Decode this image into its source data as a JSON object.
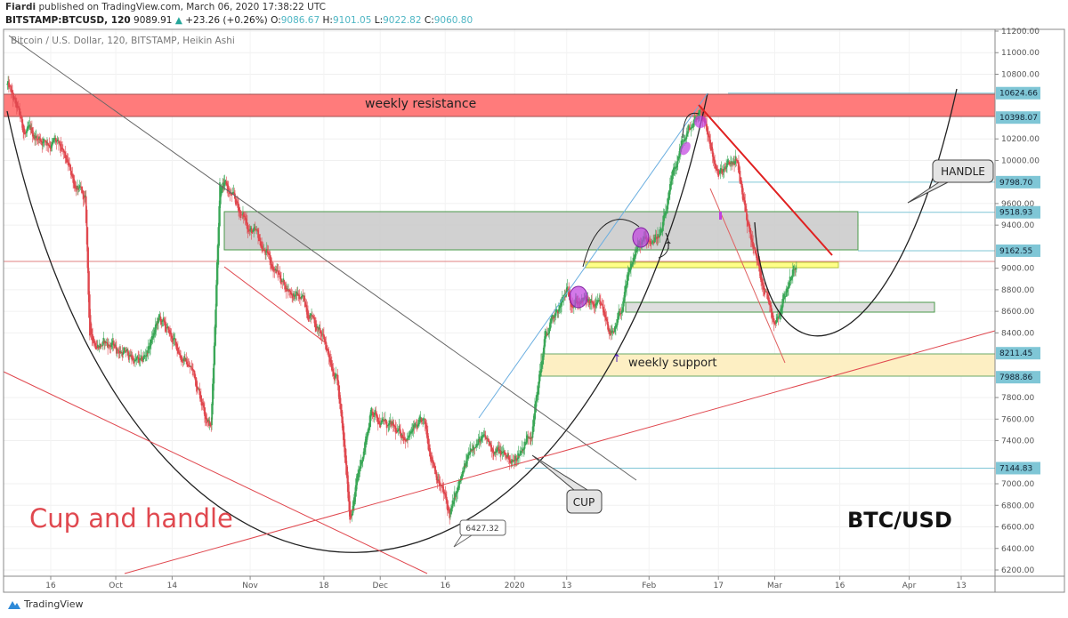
{
  "header": {
    "author": "Fiardi",
    "published": "published on TradingView.com, March 06, 2020 17:38:22 UTC",
    "symbol": "BITSTAMP:BTCUSD, 120",
    "last": "9089.91",
    "change": "+23.26 (+0.26%)",
    "o_label": "O:",
    "o": "9086.67",
    "h_label": "H:",
    "h": "9101.05",
    "l_label": "L:",
    "l": "9022.82",
    "c_label": "C:",
    "c": "9060.80"
  },
  "footer": {
    "brand": "TradingView"
  },
  "colors": {
    "up": "#3aa757",
    "down": "#e0484f",
    "resistance": "#ff7b7b",
    "support": "#fdefc3",
    "level": "#7fc6d6",
    "gray_zone": "#c9c9c9"
  },
  "chart_data": {
    "type": "candlestick",
    "title": "Bitcoin / U.S. Dollar, 120, BITSTAMP, Heikin Ashi",
    "ylim": [
      6200,
      11200
    ],
    "y_ticks": [
      "11200.00",
      "11000.00",
      "10800.00",
      "10200.00",
      "10000.00",
      "9600.00",
      "9400.00",
      "9000.00",
      "8800.00",
      "8600.00",
      "8400.00",
      "7800.00",
      "7600.00",
      "7400.00",
      "7000.00",
      "6800.00",
      "6600.00",
      "6400.00",
      "6200.00"
    ],
    "y_tick_values": [
      11200,
      11000,
      10800,
      10200,
      10000,
      9600,
      9400,
      9000,
      8800,
      8600,
      8400,
      7800,
      7600,
      7400,
      7000,
      6800,
      6600,
      6400,
      6200
    ],
    "x_ticks": [
      {
        "label": "16",
        "date": "2019-09-16"
      },
      {
        "label": "Oct",
        "date": "2019-10-01"
      },
      {
        "label": "14",
        "date": "2019-10-14"
      },
      {
        "label": "Nov",
        "date": "2019-11-01"
      },
      {
        "label": "18",
        "date": "2019-11-18"
      },
      {
        "label": "Dec",
        "date": "2019-12-01"
      },
      {
        "label": "16",
        "date": "2019-12-16"
      },
      {
        "label": "2020",
        "date": "2020-01-01"
      },
      {
        "label": "13",
        "date": "2020-01-13"
      },
      {
        "label": "Feb",
        "date": "2020-02-01"
      },
      {
        "label": "17",
        "date": "2020-02-17"
      },
      {
        "label": "Mar",
        "date": "2020-03-01"
      },
      {
        "label": "16",
        "date": "2020-03-16"
      },
      {
        "label": "Apr",
        "date": "2020-04-01"
      },
      {
        "label": "13",
        "date": "2020-04-13"
      }
    ],
    "price_levels": [
      {
        "label": "10624.66",
        "value": 10624.66
      },
      {
        "label": "10398.07",
        "value": 10398.07
      },
      {
        "label": "9798.70",
        "value": 9798.7
      },
      {
        "label": "9518.93",
        "value": 9518.93
      },
      {
        "label": "9162.55",
        "value": 9162.55
      },
      {
        "label": "8211.45",
        "value": 8211.45
      },
      {
        "label": "7988.86",
        "value": 7988.86
      },
      {
        "label": "7144.83",
        "value": 7144.83
      }
    ],
    "current_price": 9060.8,
    "approx_close_path": [
      [
        "2019-09-06",
        10700
      ],
      [
        "2019-09-10",
        10250
      ],
      [
        "2019-09-17",
        10170
      ],
      [
        "2019-09-24",
        9590
      ],
      [
        "2019-09-25",
        8350
      ],
      [
        "2019-10-01",
        8270
      ],
      [
        "2019-10-07",
        8100
      ],
      [
        "2019-10-11",
        8520
      ],
      [
        "2019-10-19",
        8020
      ],
      [
        "2019-10-23",
        7530
      ],
      [
        "2019-10-25",
        9840
      ],
      [
        "2019-10-31",
        9430
      ],
      [
        "2019-11-09",
        8850
      ],
      [
        "2019-11-15",
        8600
      ],
      [
        "2019-11-21",
        8020
      ],
      [
        "2019-11-24",
        6700
      ],
      [
        "2019-11-29",
        7690
      ],
      [
        "2019-12-05",
        7440
      ],
      [
        "2019-12-11",
        7530
      ],
      [
        "2019-12-17",
        6700
      ],
      [
        "2019-12-23",
        7440
      ],
      [
        "2020-01-01",
        7200
      ],
      [
        "2020-01-05",
        7530
      ],
      [
        "2020-01-08",
        8350
      ],
      [
        "2020-01-13",
        8760
      ],
      [
        "2020-01-21",
        8600
      ],
      [
        "2020-01-24",
        8350
      ],
      [
        "2020-01-29",
        9180
      ],
      [
        "2020-02-04",
        9340
      ],
      [
        "2020-02-08",
        10090
      ],
      [
        "2020-02-13",
        10500
      ],
      [
        "2020-02-17",
        9840
      ],
      [
        "2020-02-21",
        10000
      ],
      [
        "2020-02-25",
        9180
      ],
      [
        "2020-03-01",
        8520
      ],
      [
        "2020-03-04",
        8850
      ],
      [
        "2020-03-06",
        9060
      ]
    ],
    "annotations": {
      "resistance": "weekly resistance",
      "support": "weekly support",
      "handle": "HANDLE",
      "cup": "CUP",
      "low_label": "6427.32",
      "pattern_title": "Cup and handle",
      "pair": "BTC/USD"
    }
  }
}
